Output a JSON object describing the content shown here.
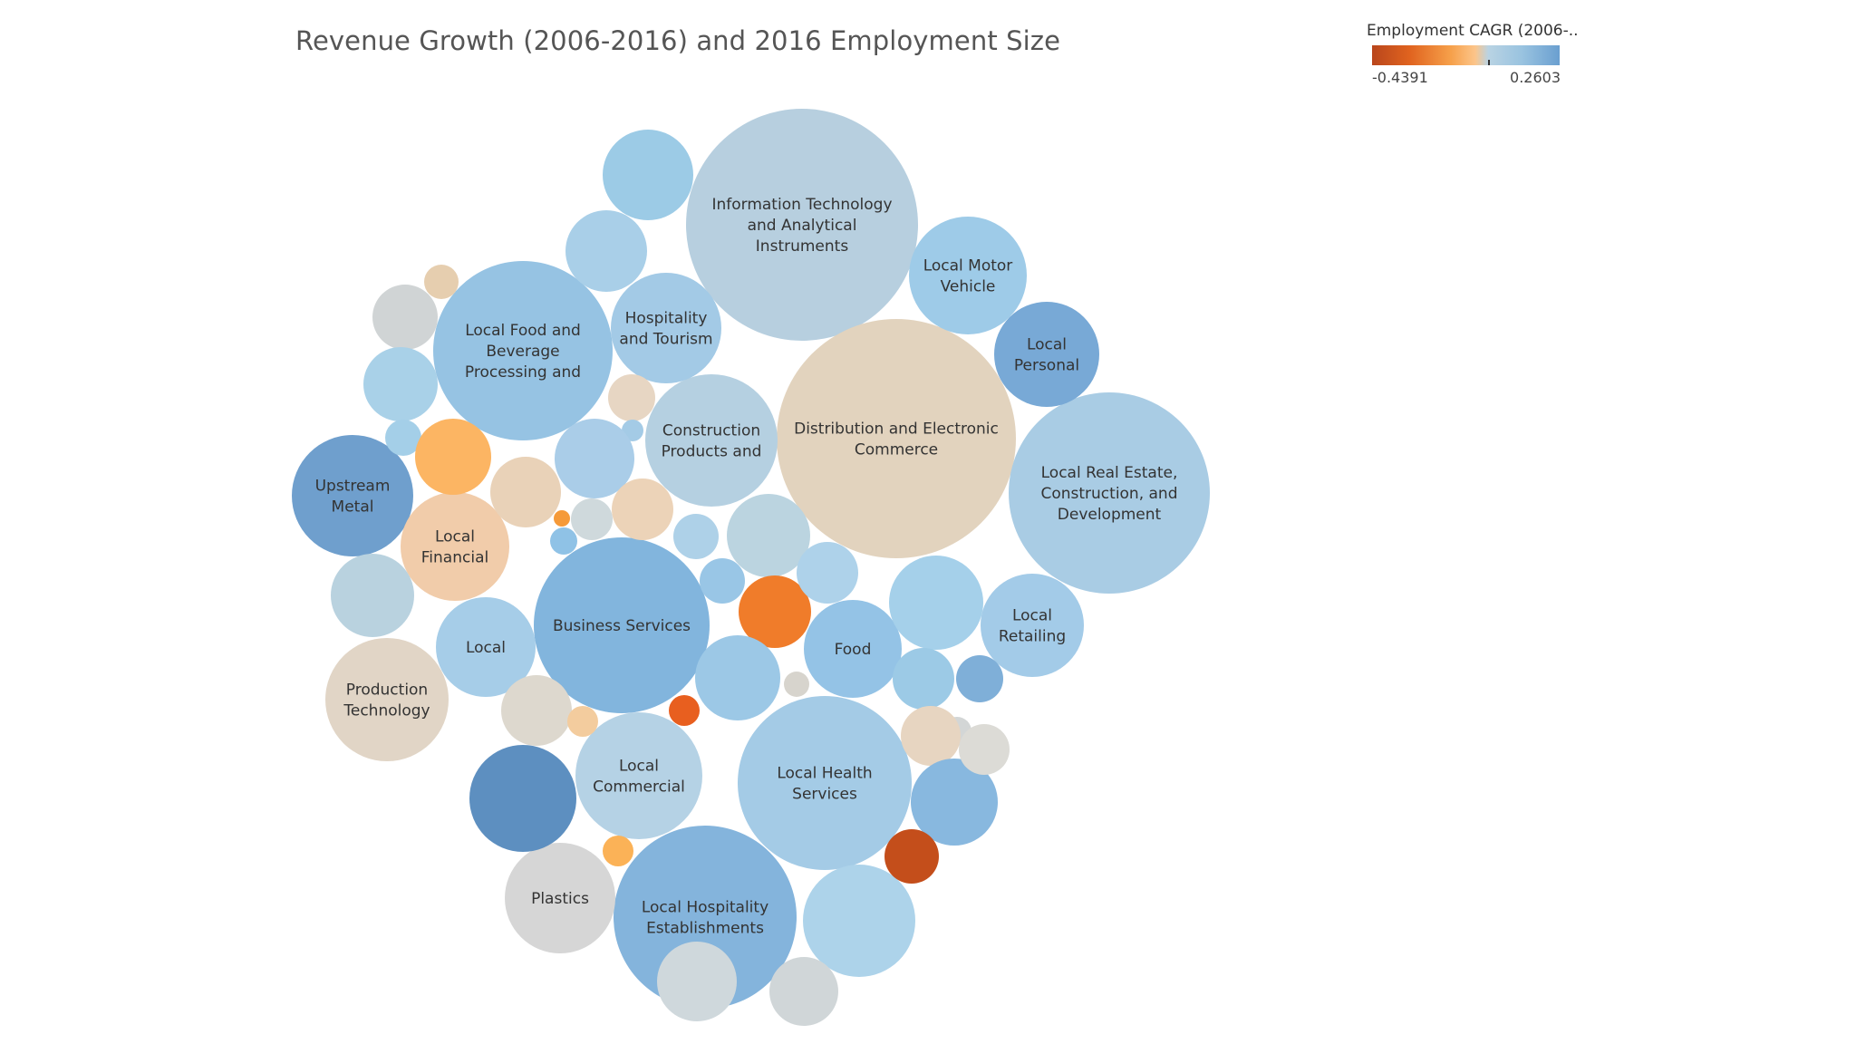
{
  "chart_data": {
    "type": "bubble",
    "title": "Revenue Growth (2006-2016) and 2016 Employment Size",
    "legend": {
      "title": "Employment CAGR (2006-..",
      "min_label": "-0.4391",
      "max_label": "0.2603",
      "min": -0.4391,
      "max": 0.2603,
      "placement": "top-right"
    },
    "color_scale": [
      "#b9461c",
      "#e0631f",
      "#f6a04a",
      "#fcc58a",
      "#b9d3e3",
      "#99c3e0",
      "#6a9fd0"
    ],
    "bubbles": [
      {
        "label": "Information Technology and Analytical Instruments",
        "lines": [
          "Information Technology",
          "and Analytical",
          "Instruments"
        ],
        "color": "#b7cfdf"
      },
      {
        "label": "Distribution and Electronic Commerce",
        "lines": [
          "Distribution and Electronic",
          "Commerce"
        ],
        "color": "#e2d3be"
      },
      {
        "label": "Local Real Estate, Construction, and Development",
        "lines": [
          "Local Real Estate,",
          "Construction, and",
          "Development"
        ],
        "color": "#a9cce4"
      },
      {
        "label": "Business Services",
        "lines": [
          "Business Services"
        ],
        "color": "#82b5dd"
      },
      {
        "label": "Local Food and Beverage Processing and",
        "lines": [
          "Local Food and",
          "Beverage",
          "Processing and"
        ],
        "color": "#96c3e3"
      },
      {
        "label": "Local Hospitality Establishments",
        "lines": [
          "Local Hospitality",
          "Establishments"
        ],
        "color": "#84b4dc"
      },
      {
        "label": "Local Health Services",
        "lines": [
          "Local Health",
          "Services"
        ],
        "color": "#a4cbe6"
      },
      {
        "label": "Construction Products and",
        "lines": [
          "Construction",
          "Products and"
        ],
        "color": "#b5d0e1"
      },
      {
        "label": "Upstream Metal",
        "lines": [
          "Upstream",
          "Metal"
        ],
        "color": "#6f9fcd"
      },
      {
        "label": "Local Motor Vehicle",
        "lines": [
          "Local Motor",
          "Vehicle"
        ],
        "color": "#9ecbe8"
      },
      {
        "label": "Local Personal",
        "lines": [
          "Local",
          "Personal"
        ],
        "color": "#78a9d6"
      },
      {
        "label": "Hospitality and Tourism",
        "lines": [
          "Hospitality",
          "and Tourism"
        ],
        "color": "#a3cae6"
      },
      {
        "label": "Local Commercial",
        "lines": [
          "Local",
          "Commercial"
        ],
        "color": "#b5d2e5"
      },
      {
        "label": "Local Financial",
        "lines": [
          "Local",
          "Financial"
        ],
        "color": "#f1ccaa"
      },
      {
        "label": "Production Technology",
        "lines": [
          "Production",
          "Technology"
        ],
        "color": "#e1d5c6"
      },
      {
        "label": "Local",
        "lines": [
          "Local"
        ],
        "color": "#a6cde8"
      },
      {
        "label": "Food",
        "lines": [
          "Food"
        ],
        "color": "#94c3e6"
      },
      {
        "label": "Local Retailing",
        "lines": [
          "Local",
          "Retailing"
        ],
        "color": "#a3cbe8"
      },
      {
        "label": "Plastics",
        "lines": [
          "Plastics"
        ],
        "color": "#d6d6d6"
      },
      {
        "label": "",
        "lines": [],
        "color": "#9ccbe6"
      },
      {
        "label": "",
        "lines": [],
        "color": "#a9cfe8"
      },
      {
        "label": "",
        "lines": [],
        "color": "#e6ceaf"
      },
      {
        "label": "",
        "lines": [],
        "color": "#d0d4d5"
      },
      {
        "label": "",
        "lines": [],
        "color": "#a9d1e8"
      },
      {
        "label": "",
        "lines": [],
        "color": "#a4cfe8"
      },
      {
        "label": "",
        "lines": [],
        "color": "#fcb563"
      },
      {
        "label": "",
        "lines": [],
        "color": "#e9d2b8"
      },
      {
        "label": "",
        "lines": [],
        "color": "#e7d6c3"
      },
      {
        "label": "",
        "lines": [],
        "color": "#a4cbe6"
      },
      {
        "label": "",
        "lines": [],
        "color": "#aacde8"
      },
      {
        "label": "",
        "lines": [],
        "color": "#cfd9dc"
      },
      {
        "label": "",
        "lines": [],
        "color": "#ecd3b8"
      },
      {
        "label": "",
        "lines": [],
        "color": "#b9d2df"
      },
      {
        "label": "",
        "lines": [],
        "color": "#aed1e8"
      },
      {
        "label": "",
        "lines": [],
        "color": "#bbd4e0"
      },
      {
        "label": "",
        "lines": [],
        "color": "#99c6e6"
      },
      {
        "label": "",
        "lines": [],
        "color": "#f07c2a"
      },
      {
        "label": "",
        "lines": [],
        "color": "#aed2ea"
      },
      {
        "label": "",
        "lines": [],
        "color": "#9cc8e6"
      },
      {
        "label": "",
        "lines": [],
        "color": "#a5d0ea"
      },
      {
        "label": "",
        "lines": [],
        "color": "#7fafd8"
      },
      {
        "label": "",
        "lines": [],
        "color": "#d7d4cd"
      },
      {
        "label": "",
        "lines": [],
        "color": "#9ccae6"
      },
      {
        "label": "",
        "lines": [],
        "color": "#d3d6d6"
      },
      {
        "label": "",
        "lines": [],
        "color": "#e7d5c1"
      },
      {
        "label": "",
        "lines": [],
        "color": "#ddd8ce"
      },
      {
        "label": "",
        "lines": [],
        "color": "#e85f1f"
      },
      {
        "label": "",
        "lines": [],
        "color": "#f3cc9e"
      },
      {
        "label": "",
        "lines": [],
        "color": "#cfd8dc"
      },
      {
        "label": "",
        "lines": [],
        "color": "#88b8df"
      },
      {
        "label": "",
        "lines": [],
        "color": "#5d8fc0"
      },
      {
        "label": "",
        "lines": [],
        "color": "#fbb257"
      },
      {
        "label": "",
        "lines": [],
        "color": "#add3ea"
      },
      {
        "label": "",
        "lines": [],
        "color": "#d0d6d8"
      },
      {
        "label": "",
        "lines": [],
        "color": "#c44e1b"
      },
      {
        "label": "",
        "lines": [],
        "color": "#f59a39"
      },
      {
        "label": "",
        "lines": [],
        "color": "#8fc2e6"
      },
      {
        "label": "",
        "lines": [],
        "color": "#d6d9d8"
      },
      {
        "label": "",
        "lines": [],
        "color": "#dcdbd6"
      },
      {
        "label": "",
        "lines": [],
        "color": "#ecd0b4"
      },
      {
        "label": "",
        "lines": [],
        "color": "#9ec9e6"
      }
    ]
  }
}
